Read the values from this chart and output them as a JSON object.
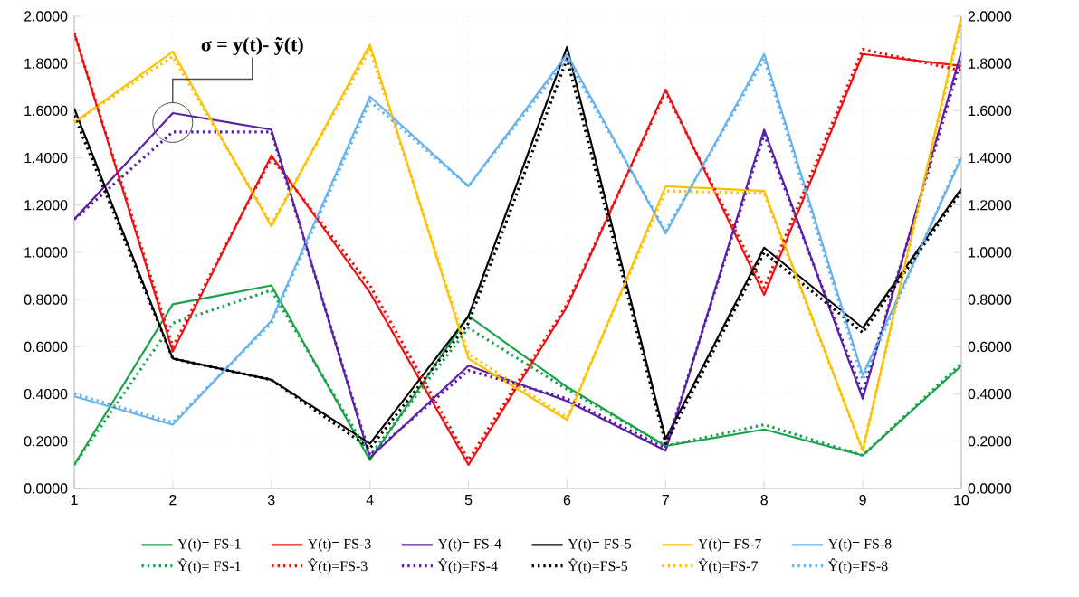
{
  "chart_data": {
    "type": "line",
    "xlim": [
      1,
      10
    ],
    "ylim": [
      0,
      2
    ],
    "y2lim": [
      0,
      2
    ],
    "xticks": [
      1,
      2,
      3,
      4,
      5,
      6,
      7,
      8,
      9,
      10
    ],
    "yticks": [
      {
        "value": 0,
        "label": "0.0000"
      },
      {
        "value": 0.2,
        "label": "0.2000"
      },
      {
        "value": 0.4,
        "label": "0.4000"
      },
      {
        "value": 0.6,
        "label": "0.6000"
      },
      {
        "value": 0.8,
        "label": "0.8000"
      },
      {
        "value": 1,
        "label": "1.0000"
      },
      {
        "value": 1.2,
        "label": "1.2000"
      },
      {
        "value": 1.4,
        "label": "1.4000"
      },
      {
        "value": 1.6,
        "label": "1.6000"
      },
      {
        "value": 1.8,
        "label": "1.8000"
      },
      {
        "value": 2,
        "label": "2.0000"
      }
    ],
    "y2ticks": [
      {
        "value": 0,
        "label": "0.0000"
      },
      {
        "value": 0.2,
        "label": "0.2000"
      },
      {
        "value": 0.4,
        "label": "0.4000"
      },
      {
        "value": 0.6,
        "label": "0.6000"
      },
      {
        "value": 0.8,
        "label": "0.8000"
      },
      {
        "value": 1,
        "label": "1.0000"
      },
      {
        "value": 1.2,
        "label": "1.2000"
      },
      {
        "value": 1.4,
        "label": "1.4000"
      },
      {
        "value": 1.6,
        "label": "1.6000"
      },
      {
        "value": 1.8,
        "label": "1.8000"
      },
      {
        "value": 2,
        "label": "2.0000"
      }
    ],
    "x": [
      1,
      2,
      3,
      4,
      5,
      6,
      7,
      8,
      9,
      10
    ],
    "grid": true,
    "legend": "bottom",
    "annotations": [
      "σ = y(t)- ỹ(t)"
    ],
    "series": [
      {
        "name": "Y(t)= FS-1",
        "color": "#1aa34a",
        "line_style": "solid",
        "values": [
          0.1,
          0.78,
          0.86,
          0.12,
          0.73,
          0.43,
          0.18,
          0.25,
          0.14,
          0.52
        ]
      },
      {
        "name": "Y(t)= FS-3",
        "color": "#f01010",
        "line_style": "solid",
        "values": [
          1.93,
          0.58,
          1.41,
          0.83,
          0.1,
          0.77,
          1.69,
          0.82,
          1.84,
          1.79
        ]
      },
      {
        "name": "Y(t)= FS-4",
        "color": "#5b1fa8",
        "line_style": "solid",
        "values": [
          1.14,
          1.59,
          1.52,
          0.13,
          0.52,
          0.37,
          0.16,
          1.52,
          0.38,
          1.85
        ]
      },
      {
        "name": "Y(t)= FS-5",
        "color": "#000000",
        "line_style": "solid",
        "values": [
          1.61,
          0.55,
          0.46,
          0.19,
          0.73,
          1.87,
          0.21,
          1.02,
          0.68,
          1.27
        ]
      },
      {
        "name": "Y(t)= FS-7",
        "color": "#ffc000",
        "line_style": "solid",
        "values": [
          1.55,
          1.85,
          1.11,
          1.88,
          0.55,
          0.29,
          1.28,
          1.26,
          0.16,
          2.0
        ]
      },
      {
        "name": "Y(t)= FS-8",
        "color": "#64b2f0",
        "line_style": "solid",
        "values": [
          0.39,
          0.27,
          0.71,
          1.66,
          1.28,
          1.84,
          1.08,
          1.84,
          0.48,
          1.4
        ]
      },
      {
        "name": "Ŷ(t)= FS-1",
        "color": "#1aa34a",
        "line_style": "dotted",
        "values": [
          0.1,
          0.7,
          0.84,
          0.14,
          0.68,
          0.42,
          0.18,
          0.27,
          0.14,
          0.53
        ]
      },
      {
        "name": "Ŷ(t)=FS-3",
        "color": "#f01010",
        "line_style": "dotted",
        "values": [
          1.93,
          0.6,
          1.4,
          0.86,
          0.12,
          0.78,
          1.68,
          0.85,
          1.86,
          1.77
        ]
      },
      {
        "name": "Ŷ(t)=FS-4",
        "color": "#5b1fa8",
        "line_style": "dotted",
        "values": [
          1.14,
          1.51,
          1.51,
          0.14,
          0.5,
          0.38,
          0.17,
          1.5,
          0.4,
          1.82
        ]
      },
      {
        "name": "Ŷ(t)=FS-5",
        "color": "#000000",
        "line_style": "dotted",
        "values": [
          1.58,
          0.55,
          0.46,
          0.17,
          0.7,
          1.82,
          0.19,
          1.0,
          0.66,
          1.26
        ]
      },
      {
        "name": "Ŷ(t)=FS-7",
        "color": "#ffc000",
        "line_style": "dotted",
        "values": [
          1.55,
          1.83,
          1.12,
          1.86,
          0.57,
          0.3,
          1.26,
          1.25,
          0.16,
          1.98
        ]
      },
      {
        "name": "Ŷ(t)=FS-8",
        "color": "#64b2f0",
        "line_style": "dotted",
        "values": [
          0.4,
          0.28,
          0.7,
          1.64,
          1.28,
          1.82,
          1.09,
          1.82,
          0.46,
          1.41
        ]
      }
    ]
  }
}
